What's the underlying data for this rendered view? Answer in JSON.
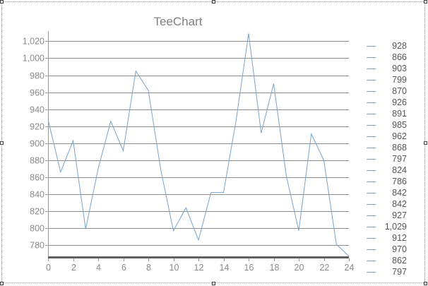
{
  "chart_data": {
    "type": "line",
    "title": "TeeChart",
    "xlabel": "",
    "ylabel": "",
    "x": [
      0,
      1,
      2,
      3,
      4,
      5,
      6,
      7,
      8,
      9,
      10,
      11,
      12,
      13,
      14,
      15,
      16,
      17,
      18,
      19,
      20,
      21,
      22,
      23,
      24
    ],
    "values": [
      928,
      866,
      903,
      799,
      870,
      926,
      891,
      985,
      962,
      868,
      797,
      824,
      786,
      842,
      842,
      927,
      1029,
      912,
      970,
      862,
      797,
      911,
      880,
      781,
      767
    ],
    "xlim": [
      0,
      24
    ],
    "ylim": [
      766,
      1032
    ],
    "x_ticks": [
      0,
      2,
      4,
      6,
      8,
      10,
      12,
      14,
      16,
      18,
      20,
      22,
      24
    ],
    "x_tick_labels": [
      "0",
      "2",
      "4",
      "6",
      "8",
      "10",
      "12",
      "14",
      "16",
      "18",
      "20",
      "22",
      "24"
    ],
    "y_ticks": [
      780,
      800,
      820,
      840,
      860,
      880,
      900,
      920,
      940,
      960,
      980,
      1000,
      1020
    ],
    "y_tick_labels": [
      "780",
      "800",
      "820",
      "840",
      "860",
      "880",
      "900",
      "920",
      "940",
      "960",
      "980",
      "1,000",
      "1,020"
    ],
    "grid": "horizontal",
    "legend_placement": "right",
    "legend_entries": [
      "928",
      "866",
      "903",
      "799",
      "870",
      "926",
      "891",
      "985",
      "962",
      "868",
      "797",
      "824",
      "786",
      "842",
      "842",
      "927",
      "1,029",
      "912",
      "970",
      "862",
      "797"
    ],
    "colors": {
      "line": "#7aa3c8",
      "grid": "#8c8c8c",
      "axis": "#9a9a9a",
      "text": "#8a8a8a",
      "title": "#7f7f7f",
      "floor": "#606060"
    }
  }
}
